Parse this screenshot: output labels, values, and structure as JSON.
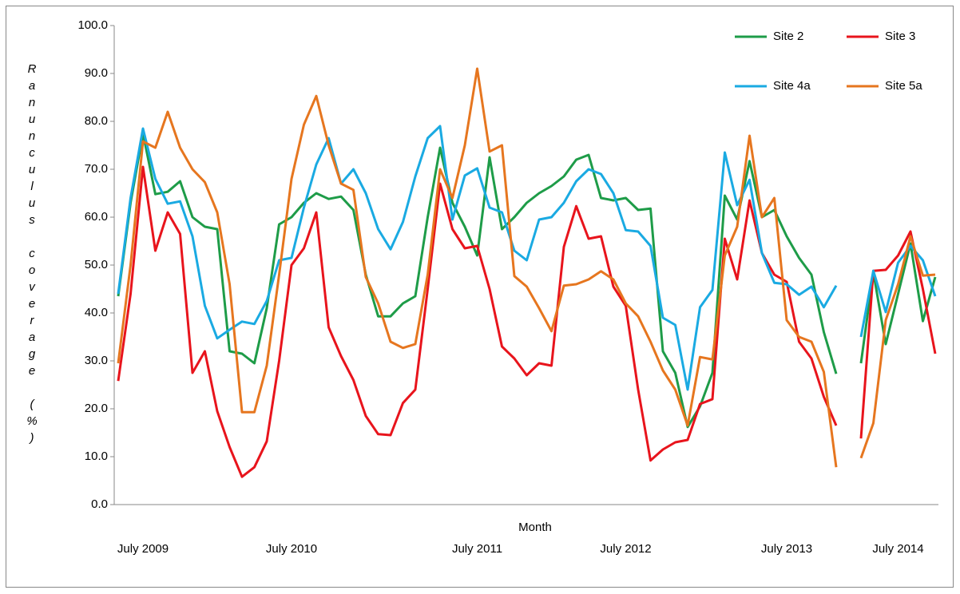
{
  "chart_data": {
    "type": "line",
    "x_label": "Month",
    "y_label": "Ranunculus coverage (%)",
    "categories": [
      null,
      null,
      "July 2009",
      null,
      null,
      null,
      null,
      null,
      null,
      null,
      null,
      null,
      null,
      null,
      "July 2010",
      null,
      null,
      null,
      null,
      null,
      null,
      null,
      null,
      null,
      null,
      null,
      null,
      null,
      null,
      "July 2011",
      null,
      null,
      null,
      null,
      null,
      null,
      null,
      null,
      null,
      null,
      null,
      "July 2012",
      null,
      null,
      null,
      null,
      null,
      null,
      null,
      null,
      null,
      null,
      null,
      null,
      "July 2013",
      null,
      null,
      null,
      null,
      null,
      null,
      null,
      null,
      "July 2014",
      null,
      null,
      null
    ],
    "series": [
      {
        "name": "Site 2",
        "color": "#1e9c48",
        "values": [
          43.5,
          63,
          77.5,
          64.8,
          65.3,
          67.5,
          60,
          58,
          57.5,
          32,
          31.5,
          29.5,
          41,
          58.5,
          60,
          63,
          65,
          63.8,
          64.3,
          61.5,
          48,
          39.3,
          39.3,
          42,
          43.5,
          60,
          74.5,
          63,
          58,
          52,
          72.5,
          57.5,
          60,
          63,
          65,
          66.5,
          68.5,
          72,
          73,
          64,
          63.5,
          64,
          61.5,
          61.8,
          32,
          27.5,
          16.2,
          20.5,
          27.5,
          64.5,
          59.5,
          71.7,
          60,
          61.5,
          56,
          51.5,
          48,
          36,
          27.3,
          null,
          29.5,
          48.5,
          33.5,
          44,
          54.5,
          38.3,
          47.5
        ]
      },
      {
        "name": "Site 3",
        "color": "#e8141c",
        "values": [
          25.8,
          44,
          70.5,
          53,
          61,
          56.5,
          27.5,
          32,
          19.5,
          12,
          5.8,
          7.8,
          13.2,
          30,
          50,
          53.5,
          61,
          37,
          31,
          26,
          18.5,
          14.7,
          14.5,
          21.2,
          24,
          45,
          67,
          57.5,
          53.5,
          54,
          45,
          33,
          30.5,
          27,
          29.5,
          29,
          53.8,
          62.3,
          55.5,
          56,
          45.5,
          41.5,
          24,
          9.2,
          11.5,
          13,
          13.5,
          21,
          22,
          55.5,
          47,
          63.5,
          52.5,
          48,
          46.5,
          34,
          30.5,
          22.5,
          16.5,
          null,
          13.8,
          48.8,
          49,
          52,
          57,
          45,
          31.5
        ]
      },
      {
        "name": "Site 4a",
        "color": "#1aaae2",
        "values": [
          44,
          64,
          78.5,
          68,
          62.8,
          63.3,
          56,
          41.5,
          34.7,
          36.5,
          38.2,
          37.7,
          42.5,
          51,
          51.5,
          62,
          71,
          76.5,
          67,
          70,
          65,
          57.5,
          53.3,
          59,
          68.5,
          76.5,
          79,
          59.5,
          68.7,
          70.2,
          62,
          61,
          53,
          51,
          59.5,
          60,
          63,
          67.5,
          70,
          69,
          65,
          57.3,
          57,
          54,
          39,
          37.5,
          24,
          41.2,
          44.8,
          73.5,
          62.5,
          67.8,
          52.5,
          46.3,
          46,
          43.8,
          45.5,
          41.2,
          45.7,
          null,
          35,
          48.8,
          40.2,
          50.5,
          54,
          51,
          43.5
        ]
      },
      {
        "name": "Site 5a",
        "color": "#e6761f",
        "values": [
          29.5,
          50,
          75.8,
          74.5,
          82,
          74.5,
          70,
          67.3,
          61,
          46,
          19.3,
          19.3,
          29,
          48,
          68,
          79.3,
          85.3,
          75,
          67,
          65.7,
          47.5,
          42,
          34,
          32.7,
          33.5,
          48,
          70,
          64,
          75,
          91,
          73.7,
          75,
          47.7,
          45.5,
          41,
          36.2,
          45.7,
          46,
          47,
          48.7,
          47,
          42,
          39.3,
          34,
          28,
          24,
          16.5,
          30.8,
          30.3,
          52,
          58,
          77,
          60,
          64,
          38.5,
          35,
          34,
          27.7,
          7.8,
          null,
          9.7,
          17,
          38.5,
          46,
          56,
          47.8,
          48
        ]
      }
    ],
    "ylim": [
      0,
      100
    ],
    "yticks": [
      {
        "value": 0,
        "label": "0.0"
      },
      {
        "value": 10,
        "label": "10.0"
      },
      {
        "value": 20,
        "label": "20.0"
      },
      {
        "value": 30,
        "label": "30.0"
      },
      {
        "value": 40,
        "label": "40.0"
      },
      {
        "value": 50,
        "label": "50.0"
      },
      {
        "value": 60,
        "label": "60.0"
      },
      {
        "value": 70,
        "label": "70.0"
      },
      {
        "value": 80,
        "label": "80.0"
      },
      {
        "value": 90,
        "label": "90.0"
      },
      {
        "value": 100,
        "label": "100.0"
      }
    ],
    "grid": false,
    "legend": "top-right"
  }
}
